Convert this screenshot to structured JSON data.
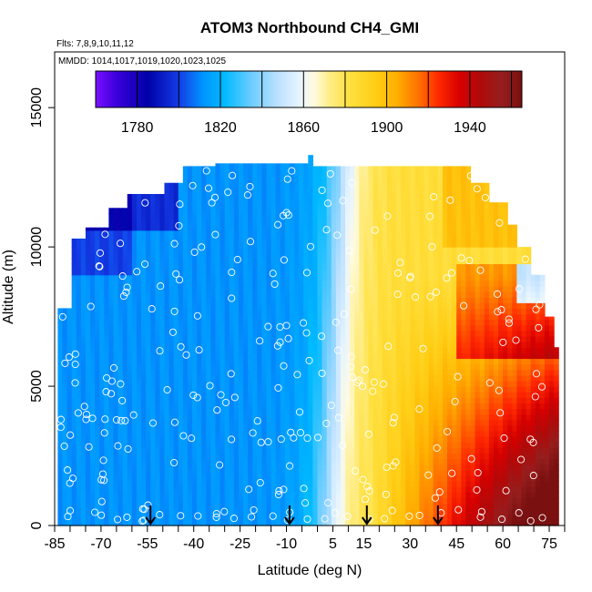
{
  "chart_data": {
    "type": "heatmap",
    "title": "ATOM3 Northbound CH4_GMI",
    "subtitle_flights": "Flts: 7,8,9,10,11,12",
    "subtitle_dates": "MMDD: 1014,1017,1019,1020,1023,1025",
    "xlabel": "Latitude (deg N)",
    "ylabel": "Altitude (m)",
    "xlim": [
      -85,
      80
    ],
    "ylim": [
      0,
      17000
    ],
    "x_tick_labels": [
      "-85",
      "-70",
      "-55",
      "-40",
      "-25",
      "-10",
      "5",
      "15",
      "30",
      "45",
      "60",
      "75"
    ],
    "x_tick_values": [
      -85,
      -70,
      -55,
      -40,
      -25,
      -10,
      5,
      15,
      30,
      45,
      60,
      75
    ],
    "x_minor_ticks": [
      -80,
      -75,
      -65,
      -60,
      -50,
      -45,
      -35,
      -30,
      -20,
      -15,
      -5,
      0,
      10,
      20,
      25,
      35,
      40,
      50,
      55,
      65,
      70,
      80
    ],
    "y_tick_labels": [
      "0",
      "5000",
      "10000",
      "15000"
    ],
    "y_tick_values": [
      0,
      5000,
      10000,
      15000
    ],
    "colorbar": {
      "range": [
        1760,
        1965
      ],
      "tick_labels": [
        "1780",
        "1820",
        "1860",
        "1900",
        "1940"
      ],
      "tick_values": [
        1780,
        1820,
        1860,
        1900,
        1940
      ],
      "boundaries": [
        1760,
        1780,
        1800,
        1820,
        1840,
        1860,
        1880,
        1900,
        1920,
        1940,
        1960
      ],
      "colors": [
        "#7a10ff",
        "#0000a8",
        "#1c4fe8",
        "#00b4ff",
        "#bfe0ff",
        "#fffbe0",
        "#ffe040",
        "#ffae00",
        "#ff2000",
        "#a00000",
        "#7a1010"
      ]
    },
    "field_description": "CH4 curtain: ~1790-1815 ppb south of 40S, increasing northward to ~1950+ ppb near 45-75N in the lower troposphere",
    "data_extent": {
      "lat_min": -84,
      "lat_max": 78,
      "alt_max": 13300
    },
    "profile_markers_lat": [
      -54,
      -9,
      16,
      39
    ]
  }
}
